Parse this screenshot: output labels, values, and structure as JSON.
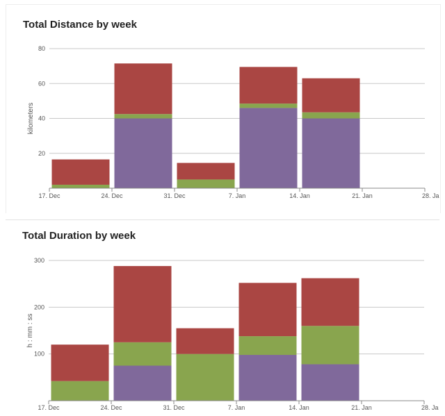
{
  "chart_data": [
    {
      "type": "bar",
      "stacked": true,
      "title": "Total Distance by week",
      "xlabel": "",
      "ylabel": "kilometers",
      "ylim": [
        0,
        80
      ],
      "yticks": [
        20,
        40,
        60,
        80
      ],
      "ytick_labels": [
        "20",
        "40",
        "60",
        "80"
      ],
      "xtick_labels": [
        "17. Dec",
        "24. Dec",
        "31. Dec",
        "7. Jan",
        "14. Jan",
        "21. Jan",
        "28. Ja"
      ],
      "categories": [
        "24. Dec",
        "31. Dec",
        "7. Jan",
        "14. Jan",
        "21. Jan"
      ],
      "grid": true,
      "legend": "none",
      "series": [
        {
          "values": [
            0,
            40,
            0,
            46,
            40
          ],
          "color": "#80699b"
        },
        {
          "values": [
            2,
            2.5,
            5,
            2.5,
            3.5
          ],
          "color": "#89a54e"
        },
        {
          "values": [
            14.5,
            29,
            9.5,
            21,
            19.5
          ],
          "color": "#aa4643"
        }
      ]
    },
    {
      "type": "bar",
      "stacked": true,
      "title": "Total Duration by week",
      "xlabel": "",
      "ylabel": "h : mm : ss",
      "ylim": [
        0,
        300
      ],
      "yticks": [
        100,
        200,
        300
      ],
      "ytick_labels": [
        "100",
        "200",
        "300"
      ],
      "xtick_labels": [
        "17. Dec",
        "24. Dec",
        "31. Dec",
        "7. Jan",
        "14. Jan",
        "21. Jan",
        "28. Ja"
      ],
      "categories": [
        "24. Dec",
        "31. Dec",
        "7. Jan",
        "14. Jan",
        "21. Jan"
      ],
      "grid": true,
      "legend": "none",
      "series": [
        {
          "values": [
            0,
            75,
            0,
            98,
            78
          ],
          "color": "#80699b"
        },
        {
          "values": [
            42,
            50,
            100,
            40,
            82
          ],
          "color": "#89a54e"
        },
        {
          "values": [
            78,
            163,
            55,
            114,
            102
          ],
          "color": "#aa4643"
        }
      ]
    }
  ]
}
